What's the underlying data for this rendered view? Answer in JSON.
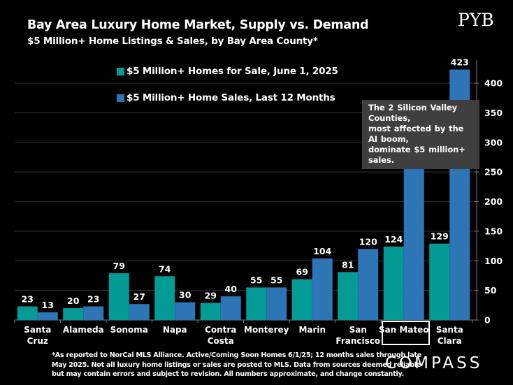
{
  "header": {
    "title": "Bay Area Luxury Home Market, Supply vs. Demand",
    "subtitle": "$5 Million+ Home Listings & Sales, by Bay Area County*",
    "logo_top_right": "PYB"
  },
  "annotation": {
    "lines": [
      "The 2 Silicon Valley Counties,",
      "most affected by the AI boom,",
      "dominate $5 million+ sales."
    ]
  },
  "footnote": {
    "lines": [
      "*As reported to NorCal MLS Alliance. Active/Coming Soon Homes 6/1/25; 12 months sales through late",
      "May 2025. Not all luxury home listings or sales are posted to MLS. Data from sources deemed reliable",
      "but may contain errors and subject to revision. All numbers approximate, and change constantly."
    ]
  },
  "brand": {
    "logo_bottom_right": "COMPASS"
  },
  "colors": {
    "for_sale": "#049a96",
    "sales": "#2e75b6",
    "background": "#000000",
    "gridline": "#2a2a2a",
    "annotation_bg": "#3f3f3f"
  },
  "chart_data": {
    "type": "bar",
    "title": "Bay Area Luxury Home Market, Supply vs. Demand",
    "subtitle": "$5 Million+ Home Listings & Sales, by Bay Area County*",
    "xlabel": "",
    "ylabel": "",
    "categories": [
      [
        "Santa",
        "Cruz"
      ],
      [
        "Alameda"
      ],
      [
        "Sonoma"
      ],
      [
        "Napa"
      ],
      [
        "Contra",
        "Costa"
      ],
      [
        "Monterey"
      ],
      [
        "Marin"
      ],
      [
        "San",
        "Francisco"
      ],
      [
        "San Mateo"
      ],
      [
        "Santa",
        "Clara"
      ]
    ],
    "highlighted_category": "San Mateo",
    "series": [
      {
        "name": "$5 Million+ Homes for Sale, June 1, 2025",
        "color": "#049a96",
        "values": [
          23,
          20,
          79,
          74,
          29,
          55,
          69,
          81,
          124,
          129
        ]
      },
      {
        "name": "$5 Million+ Home Sales, Last 12 Months",
        "color": "#2e75b6",
        "values": [
          13,
          23,
          27,
          30,
          40,
          55,
          104,
          120,
          278,
          423
        ]
      }
    ],
    "ylim": [
      0,
      400
    ],
    "y_ticks": [
      0,
      50,
      100,
      150,
      200,
      250,
      300,
      350,
      400
    ],
    "y_axis_side": "right",
    "grid": true,
    "data_labels": true,
    "legend_position": "top-left"
  }
}
